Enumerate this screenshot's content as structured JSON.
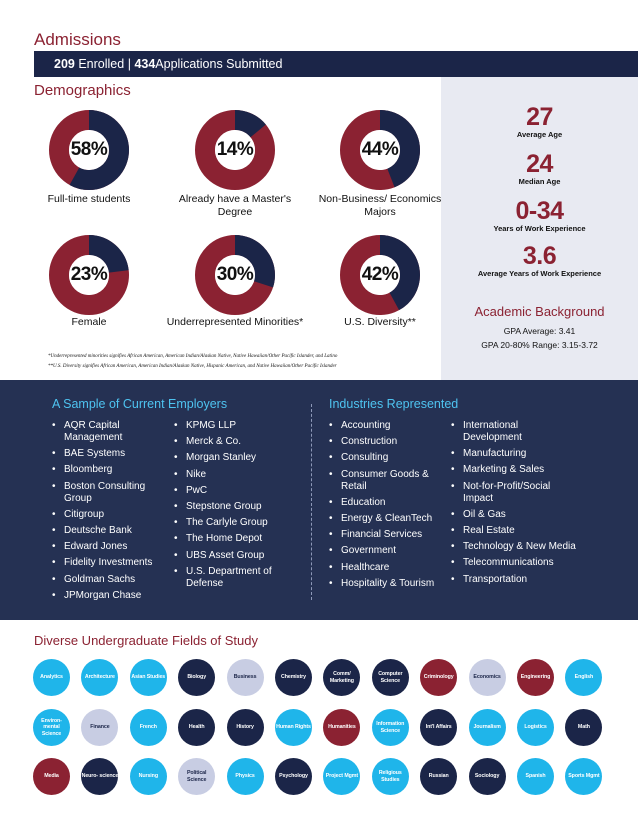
{
  "admissions": {
    "title": "Admissions",
    "enrolled_num": "209",
    "enrolled_label": "Enrolled",
    "separator": "|",
    "applications_num": "434",
    "applications_label": "Applications Submitted"
  },
  "demographics": {
    "title": "Demographics",
    "donuts": [
      {
        "value": "58%",
        "fraction": 0.58,
        "caption": "Full-time students"
      },
      {
        "value": "14%",
        "fraction": 0.14,
        "caption": "Already have a Master's Degree"
      },
      {
        "value": "44%",
        "fraction": 0.44,
        "caption": "Non-Business/ Economics Majors"
      },
      {
        "value": "23%",
        "fraction": 0.23,
        "caption": "Female"
      },
      {
        "value": "30%",
        "fraction": 0.3,
        "caption": "Underrepresented Minorities*"
      },
      {
        "value": "42%",
        "fraction": 0.42,
        "caption": "U.S. Diversity**"
      }
    ],
    "footnote1": "*Underrepresented minorities signifies African American, American Indian/Alaskan Native, Native Hawaiian/Other Pacific Islander, and Latino",
    "footnote2": "**U.S. Diversity signifies African American, American Indian/Alaskan Native, Hispanic American, and Native Hawaiian/Other Pacific Islander"
  },
  "stats": [
    {
      "value": "27",
      "label": "Average Age"
    },
    {
      "value": "24",
      "label": "Median Age"
    },
    {
      "value": "0-34",
      "label": "Years of Work Experience"
    },
    {
      "value": "3.6",
      "label": "Average Years of Work Experience"
    }
  ],
  "academic": {
    "title": "Academic Background",
    "gpa_avg": "GPA Average: 3.41",
    "gpa_range": "GPA 20-80% Range: 3.15-3.72"
  },
  "employers": {
    "title": "A Sample of Current Employers",
    "col1": [
      "AQR Capital Management",
      "BAE Systems",
      "Bloomberg",
      "Boston Consulting Group",
      "Citigroup",
      "Deutsche Bank",
      "Edward Jones",
      "Fidelity Investments",
      "Goldman Sachs",
      "JPMorgan Chase"
    ],
    "col2": [
      "KPMG LLP",
      "Merck & Co.",
      "Morgan Stanley",
      "Nike",
      "PwC",
      "Stepstone Group",
      "The Carlyle Group",
      "The Home Depot",
      "UBS Asset Group",
      "U.S. Department of Defense"
    ]
  },
  "industries": {
    "title": "Industries Represented",
    "col1": [
      "Accounting",
      "Construction",
      "Consulting",
      "Consumer Goods & Retail",
      "Education",
      "Energy & CleanTech",
      "Financial Services",
      "Government",
      "Healthcare",
      "Hospitality & Tourism"
    ],
    "col2": [
      "International Development",
      "Manufacturing",
      "Marketing & Sales",
      "Not-for-Profit/Social Impact",
      "Oil & Gas",
      "Real Estate",
      "Technology & New Media",
      "Telecommunications",
      "Transportation"
    ]
  },
  "fields": {
    "title": "Diverse Undergraduate Fields of Study",
    "items": [
      {
        "label": "Analytics",
        "color": "cyan"
      },
      {
        "label": "Architecture",
        "color": "cyan"
      },
      {
        "label": "Asian Studies",
        "color": "cyan"
      },
      {
        "label": "Biology",
        "color": "navy"
      },
      {
        "label": "Business",
        "color": "lav"
      },
      {
        "label": "Chemistry",
        "color": "navy"
      },
      {
        "label": "Comm/ Marketing",
        "color": "navy"
      },
      {
        "label": "Computer Science",
        "color": "navy"
      },
      {
        "label": "Criminology",
        "color": "maroon"
      },
      {
        "label": "Economics",
        "color": "lav"
      },
      {
        "label": "Engineering",
        "color": "maroon"
      },
      {
        "label": "English",
        "color": "cyan"
      },
      {
        "label": "Environ- mental Science",
        "color": "cyan"
      },
      {
        "label": "Finance",
        "color": "lav"
      },
      {
        "label": "French",
        "color": "cyan"
      },
      {
        "label": "Health",
        "color": "navy"
      },
      {
        "label": "History",
        "color": "navy"
      },
      {
        "label": "Human Rights",
        "color": "cyan"
      },
      {
        "label": "Humanities",
        "color": "maroon"
      },
      {
        "label": "Information Science",
        "color": "cyan"
      },
      {
        "label": "Int'l Affairs",
        "color": "navy"
      },
      {
        "label": "Journalism",
        "color": "cyan"
      },
      {
        "label": "Logistics",
        "color": "cyan"
      },
      {
        "label": "Math",
        "color": "navy"
      },
      {
        "label": "Media",
        "color": "maroon"
      },
      {
        "label": "Neuro- science",
        "color": "navy"
      },
      {
        "label": "Nursing",
        "color": "cyan"
      },
      {
        "label": "Political Science",
        "color": "lav"
      },
      {
        "label": "Physics",
        "color": "cyan"
      },
      {
        "label": "Psychology",
        "color": "navy"
      },
      {
        "label": "Project Mgmt",
        "color": "cyan"
      },
      {
        "label": "Religious Studies",
        "color": "cyan"
      },
      {
        "label": "Russian",
        "color": "navy"
      },
      {
        "label": "Sociology",
        "color": "navy"
      },
      {
        "label": "Spanish",
        "color": "cyan"
      },
      {
        "label": "Sports Mgmt",
        "color": "cyan"
      }
    ]
  },
  "colors": {
    "navy": "#1b2548",
    "maroon": "#8b2232",
    "cyan": "#1fb5ea",
    "lavender": "#c8cde3"
  }
}
